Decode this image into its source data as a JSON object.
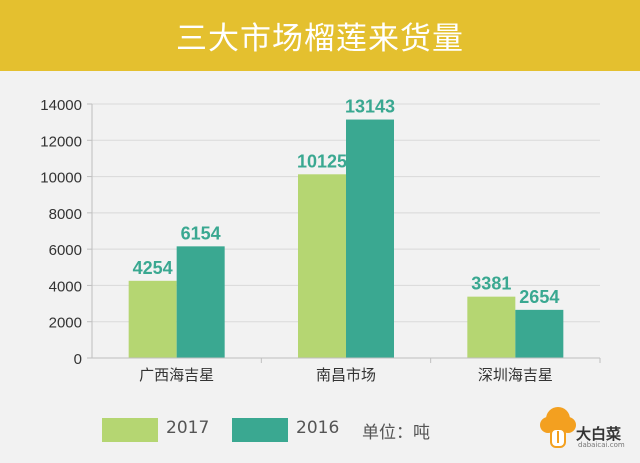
{
  "header": {
    "title": "三大市场榴莲来货量"
  },
  "chart_data": {
    "type": "bar",
    "categories": [
      "广西海吉星",
      "南昌市场",
      "深圳海吉星"
    ],
    "series": [
      {
        "name": "2017",
        "values": [
          4254,
          10125,
          3381
        ],
        "color": "#b5d672"
      },
      {
        "name": "2016",
        "values": [
          6154,
          13143,
          2654
        ],
        "color": "#3aa891"
      }
    ],
    "ylim": [
      0,
      14000
    ],
    "yticks": [
      0,
      2000,
      4000,
      6000,
      8000,
      10000,
      12000,
      14000
    ],
    "grid": true,
    "legend_position": "bottom-left"
  },
  "legend": {
    "unit": "单位：吨"
  },
  "logo": {
    "name": "大白菜",
    "sub": "dabaicai.com"
  },
  "colors": {
    "header_bg": "#e4c02f",
    "value_label": "#3aa891"
  }
}
